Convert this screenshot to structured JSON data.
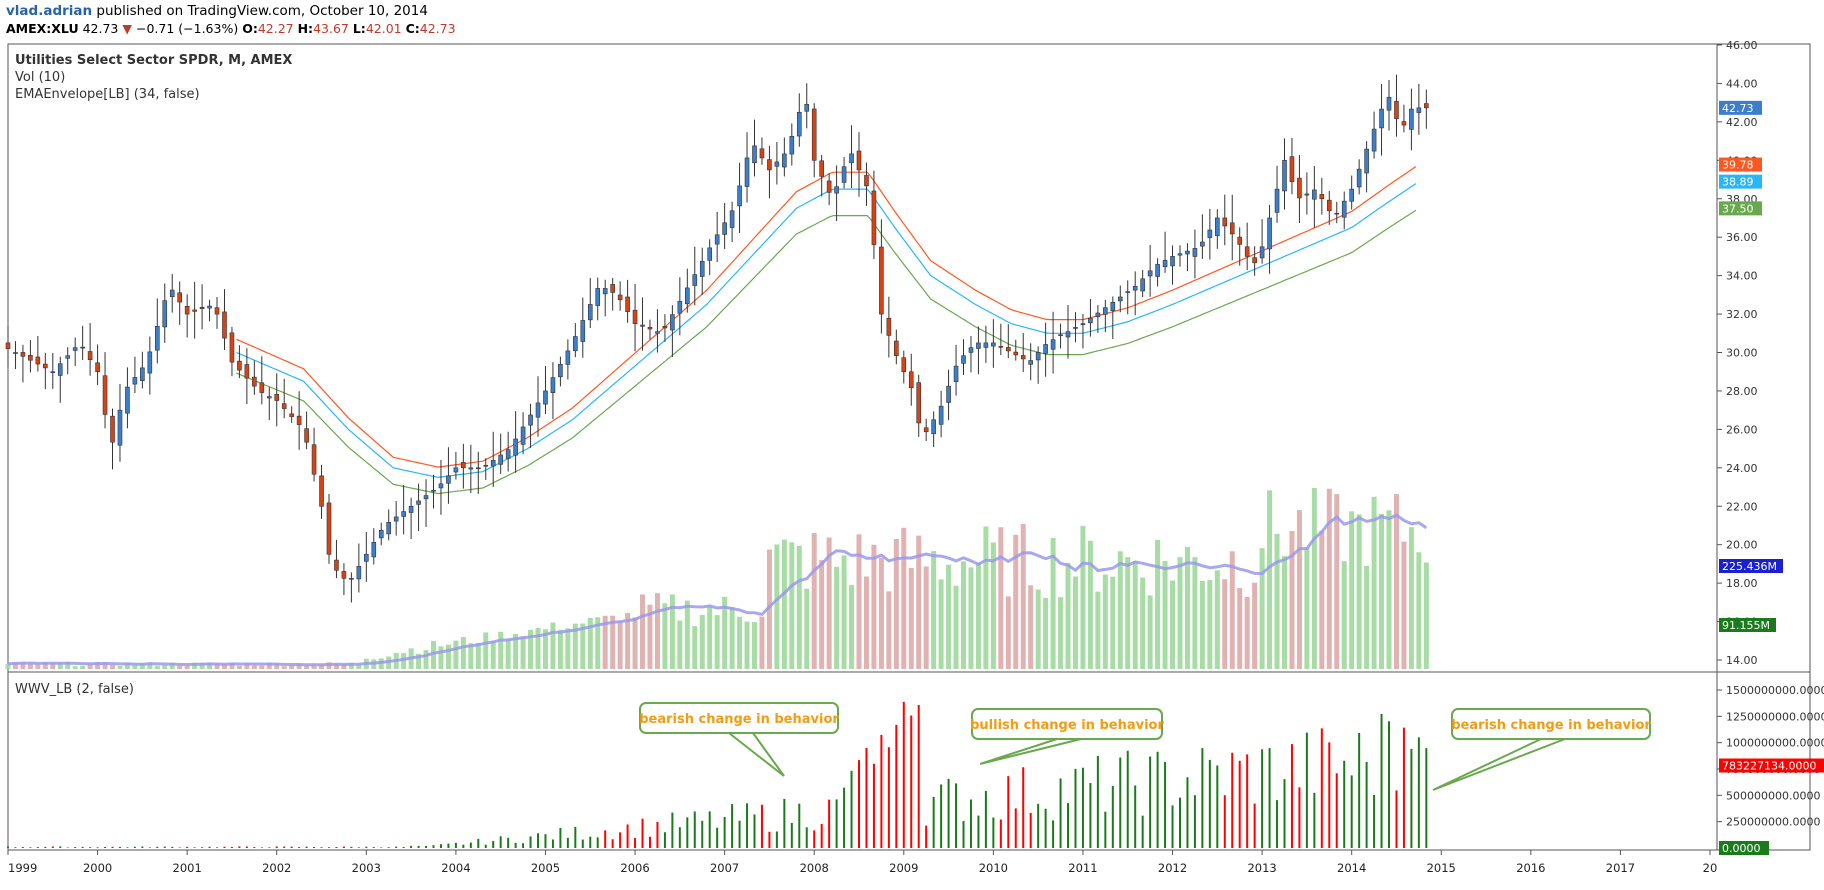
{
  "header": {
    "author": "vlad.adrian",
    "published": "published on TradingView.com, October 10, 2014",
    "symbol": "AMEX:XLU",
    "last": "42.73",
    "change": "−0.71 (−1.63%)",
    "o_label": "O:",
    "o_val": "42.27",
    "h_label": "H:",
    "h_val": "43.67",
    "l_label": "L:",
    "l_val": "42.01",
    "c_label": "C:",
    "c_val": "42.73"
  },
  "legend": {
    "title": "Utilities Select Sector SPDR, M, AMEX",
    "vol": "Vol (10)",
    "envelope": "EMAEnvelope[LB] (34, false)",
    "lower_indicator": "WWV_LB (2, false)"
  },
  "colors": {
    "up": "#3d7ecb",
    "down": "#d84315",
    "vol_up": "#a8dca5",
    "vol_down": "#e0b2b2",
    "env_upper": "#ff5722",
    "env_mid": "#29b6f6",
    "env_lower": "#6aa84f",
    "vol_ma": "#9999ee",
    "wwv_up": "#1b7a1b",
    "wwv_down": "#ff0000",
    "callout_border": "#6aa84f",
    "callout_text": "#f39c12"
  },
  "price_tags": [
    {
      "text": "42.73",
      "color": "#3d7ecb"
    },
    {
      "text": "39.78",
      "color": "#ff5722"
    },
    {
      "text": "38.89",
      "color": "#29b6f6"
    },
    {
      "text": "37.50",
      "color": "#6aa84f"
    },
    {
      "text": "225.436M",
      "color": "#1a20d0"
    },
    {
      "text": "91.155M",
      "color": "#1b7a1b"
    }
  ],
  "lower_tags": [
    {
      "text": "783227134.0000",
      "color": "#ff0000"
    },
    {
      "text": "0.0000",
      "color": "#1b7a1b"
    }
  ],
  "callouts": [
    {
      "text": "bearish change in behavior"
    },
    {
      "text": "bullish change in behavior"
    },
    {
      "text": "bearish change in behavior"
    }
  ],
  "chart_data": {
    "type": "line",
    "title": "Utilities Select Sector SPDR, M, AMEX",
    "price_axis": {
      "min": 14,
      "max": 46,
      "ticks": [
        "46.00",
        "44.00",
        "42.00",
        "40.00",
        "38.00",
        "36.00",
        "34.00",
        "32.00",
        "30.00",
        "28.00",
        "26.00",
        "24.00",
        "22.00",
        "20.00",
        "18.00",
        "16.00",
        "14.00"
      ]
    },
    "lower_axis": {
      "min": 0,
      "max": 1500000000,
      "ticks": [
        "1500000000.0000",
        "1250000000.0000",
        "1000000000.0000",
        "750000000.0000",
        "500000000.0000",
        "250000000.0000"
      ]
    },
    "x_ticks": [
      "1999",
      "2000",
      "2001",
      "2002",
      "2003",
      "2004",
      "2005",
      "2006",
      "2007",
      "2008",
      "2009",
      "2010",
      "2011",
      "2012",
      "2013",
      "2014",
      "2015",
      "2016",
      "2017",
      "20"
    ],
    "x_range": [
      1999.0,
      2018.0
    ],
    "anchors": [
      [
        1999.0,
        30.2
      ],
      [
        1999.5,
        29.0
      ],
      [
        1999.8,
        30.5
      ],
      [
        2000.0,
        29.0
      ],
      [
        2000.15,
        25.0
      ],
      [
        2000.3,
        28.0
      ],
      [
        2000.55,
        29.5
      ],
      [
        2000.8,
        33.5
      ],
      [
        2001.0,
        32.0
      ],
      [
        2001.3,
        32.5
      ],
      [
        2001.5,
        29.5
      ],
      [
        2001.8,
        28.0
      ],
      [
        2002.0,
        27.5
      ],
      [
        2002.3,
        26.0
      ],
      [
        2002.5,
        22.0
      ],
      [
        2002.6,
        19.0
      ],
      [
        2002.8,
        18.0
      ],
      [
        2003.0,
        19.5
      ],
      [
        2003.2,
        21.0
      ],
      [
        2003.5,
        22.0
      ],
      [
        2003.8,
        23.0
      ],
      [
        2004.0,
        24.0
      ],
      [
        2004.3,
        24.0
      ],
      [
        2004.6,
        25.0
      ],
      [
        2005.0,
        28.0
      ],
      [
        2005.3,
        30.5
      ],
      [
        2005.6,
        33.5
      ],
      [
        2005.8,
        33.0
      ],
      [
        2006.0,
        31.5
      ],
      [
        2006.3,
        31.0
      ],
      [
        2006.6,
        33.5
      ],
      [
        2006.9,
        36.0
      ],
      [
        2007.1,
        37.5
      ],
      [
        2007.3,
        41.0
      ],
      [
        2007.5,
        39.5
      ],
      [
        2007.7,
        40.5
      ],
      [
        2007.9,
        43.5
      ],
      [
        2008.0,
        40.0
      ],
      [
        2008.2,
        38.0
      ],
      [
        2008.4,
        40.5
      ],
      [
        2008.6,
        38.5
      ],
      [
        2008.75,
        32.0
      ],
      [
        2008.9,
        30.0
      ],
      [
        2009.1,
        28.0
      ],
      [
        2009.2,
        25.5
      ],
      [
        2009.4,
        27.0
      ],
      [
        2009.6,
        29.5
      ],
      [
        2009.8,
        30.5
      ],
      [
        2010.0,
        30.5
      ],
      [
        2010.2,
        30.0
      ],
      [
        2010.4,
        29.5
      ],
      [
        2010.6,
        30.5
      ],
      [
        2010.8,
        31.0
      ],
      [
        2011.0,
        31.5
      ],
      [
        2011.3,
        32.5
      ],
      [
        2011.6,
        33.5
      ],
      [
        2011.8,
        34.5
      ],
      [
        2012.0,
        35.0
      ],
      [
        2012.3,
        35.5
      ],
      [
        2012.5,
        37.0
      ],
      [
        2012.7,
        36.0
      ],
      [
        2012.9,
        34.5
      ],
      [
        2013.0,
        35.5
      ],
      [
        2013.25,
        40.0
      ],
      [
        2013.4,
        38.0
      ],
      [
        2013.6,
        38.5
      ],
      [
        2013.8,
        37.0
      ],
      [
        2014.0,
        38.5
      ],
      [
        2014.2,
        41.0
      ],
      [
        2014.4,
        43.5
      ],
      [
        2014.55,
        41.5
      ],
      [
        2014.7,
        43.0
      ],
      [
        2014.75,
        42.73
      ]
    ],
    "envelope_start": 2001.55,
    "envelope_anchor_mid": [
      [
        2001.55,
        30.0
      ],
      [
        2002.3,
        28.5
      ],
      [
        2002.8,
        26.0
      ],
      [
        2003.3,
        24.0
      ],
      [
        2003.8,
        23.5
      ],
      [
        2004.3,
        23.8
      ],
      [
        2004.8,
        25.0
      ],
      [
        2005.3,
        26.5
      ],
      [
        2005.8,
        28.5
      ],
      [
        2006.3,
        30.5
      ],
      [
        2006.8,
        32.5
      ],
      [
        2007.3,
        35.0
      ],
      [
        2007.8,
        37.5
      ],
      [
        2008.2,
        38.5
      ],
      [
        2008.6,
        38.5
      ],
      [
        2008.9,
        36.5
      ],
      [
        2009.3,
        34.0
      ],
      [
        2009.8,
        32.5
      ],
      [
        2010.2,
        31.5
      ],
      [
        2010.6,
        31.0
      ],
      [
        2011.0,
        31.0
      ],
      [
        2011.5,
        31.6
      ],
      [
        2012.0,
        32.5
      ],
      [
        2012.5,
        33.5
      ],
      [
        2013.0,
        34.5
      ],
      [
        2013.5,
        35.5
      ],
      [
        2014.0,
        36.5
      ],
      [
        2014.4,
        37.8
      ],
      [
        2014.75,
        38.89
      ]
    ],
    "env_upper_last": 39.78,
    "env_lower_last": 37.5,
    "volume_last": "91.155M",
    "volume_ma_last": "225.436M",
    "wwv_last": 783227134
  }
}
